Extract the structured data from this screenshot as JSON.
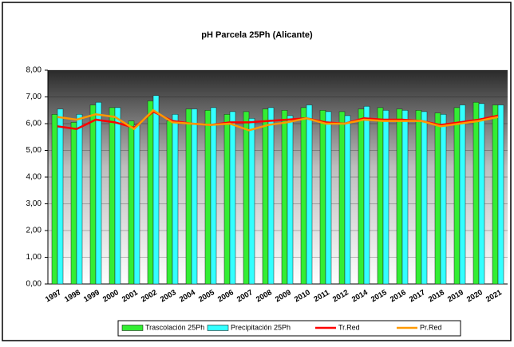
{
  "chart_data": {
    "type": "bar",
    "title": "pH Parcela 25Ph (Alicante)",
    "categories": [
      "1997",
      "1998",
      "1999",
      "2000",
      "2001",
      "2002",
      "2003",
      "2004",
      "2005",
      "2006",
      "2007",
      "2008",
      "2009",
      "2010",
      "2011",
      "2012",
      "2014",
      "2015",
      "2016",
      "2017",
      "2018",
      "2019",
      "2020",
      "2021"
    ],
    "series": [
      {
        "name": "Trascolación  25Ph",
        "type": "bar",
        "color": "#33ee33",
        "values": [
          6.35,
          6.05,
          6.7,
          6.6,
          6.1,
          6.85,
          6.1,
          6.55,
          6.5,
          6.35,
          6.45,
          6.55,
          6.5,
          6.6,
          6.5,
          6.45,
          6.55,
          6.6,
          6.55,
          6.5,
          6.4,
          6.6,
          6.8,
          6.7
        ]
      },
      {
        "name": "Precipitación 25Ph",
        "type": "bar",
        "color": "#33ffff",
        "values": [
          6.55,
          6.35,
          6.8,
          6.6,
          5.95,
          7.05,
          6.35,
          6.55,
          6.6,
          6.45,
          6.2,
          6.6,
          6.3,
          6.7,
          6.45,
          6.3,
          6.65,
          6.5,
          6.5,
          6.45,
          6.35,
          6.7,
          6.75,
          6.7
        ]
      },
      {
        "name": "Tr.Red",
        "type": "line",
        "color": "#ff0000",
        "values": [
          5.9,
          5.8,
          6.15,
          6.05,
          5.85,
          6.45,
          6.1,
          6.0,
          5.95,
          6.05,
          6.05,
          6.1,
          6.15,
          6.2,
          6.05,
          6.0,
          6.2,
          6.15,
          6.15,
          6.1,
          5.95,
          6.05,
          6.15,
          6.3
        ]
      },
      {
        "name": "Pr.Red",
        "type": "line",
        "color": "#ff9900",
        "values": [
          6.25,
          6.15,
          6.35,
          6.25,
          5.8,
          6.5,
          6.05,
          6.0,
          5.95,
          6.0,
          5.75,
          5.95,
          6.05,
          6.2,
          6.0,
          6.0,
          6.15,
          6.1,
          6.1,
          6.1,
          5.9,
          6.0,
          6.1,
          6.25
        ]
      }
    ],
    "ylim": [
      0,
      8
    ],
    "yticks": [
      {
        "value": 0,
        "label": "0,00"
      },
      {
        "value": 1,
        "label": "1,00"
      },
      {
        "value": 2,
        "label": "2,00"
      },
      {
        "value": 3,
        "label": "3,00"
      },
      {
        "value": 4,
        "label": "4,00"
      },
      {
        "value": 5,
        "label": "5,00"
      },
      {
        "value": 6,
        "label": "6,00"
      },
      {
        "value": 7,
        "label": "7,00"
      },
      {
        "value": 8,
        "label": "8,00"
      }
    ],
    "grid": true,
    "legend": "bottom"
  }
}
